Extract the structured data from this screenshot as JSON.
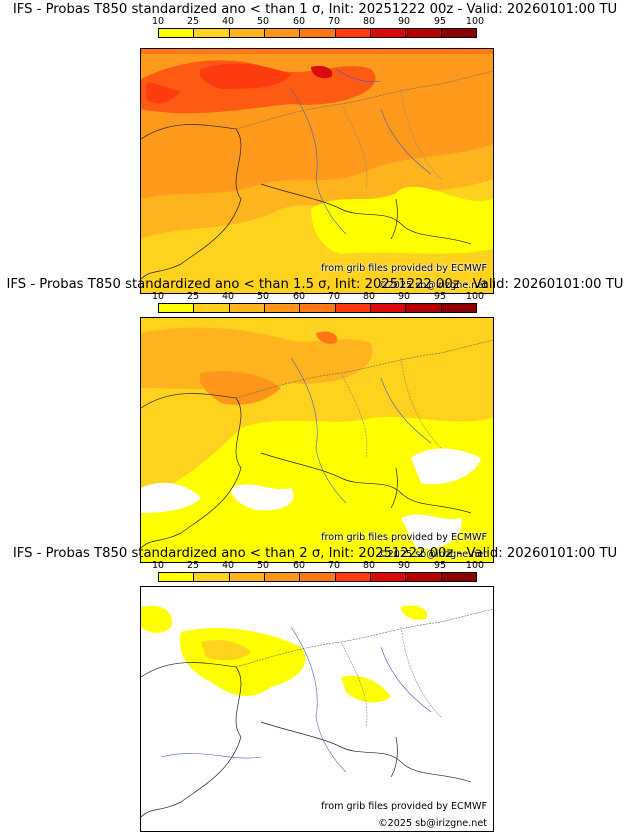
{
  "legend": {
    "levels": [
      "10",
      "25",
      "40",
      "50",
      "60",
      "70",
      "80",
      "90",
      "95",
      "100"
    ],
    "colors": [
      "#ffff00",
      "#ffd21e",
      "#ffb41e",
      "#ff9619",
      "#ff7814",
      "#ff3c0f",
      "#dc0a0a",
      "#b40000",
      "#8c0000",
      "#5a0000"
    ]
  },
  "panels": [
    {
      "title": "IFS - Probas T850  standardized ano < than 1 σ, Init: 20251222 00z - Valid: 20260101:00 TU"
    },
    {
      "title": "IFS - Probas T850  standardized ano < than 1.5 σ, Init: 20251222 00z - Valid: 20260101:00 TU"
    },
    {
      "title": "IFS - Probas T850  standardized ano < than 2 σ, Init: 20251222 00z - Valid: 20260101:00 TU"
    }
  ],
  "credits": {
    "source": "from grib files provided by ECMWF",
    "copyright": "©2025 sb@irizgne.net"
  }
}
